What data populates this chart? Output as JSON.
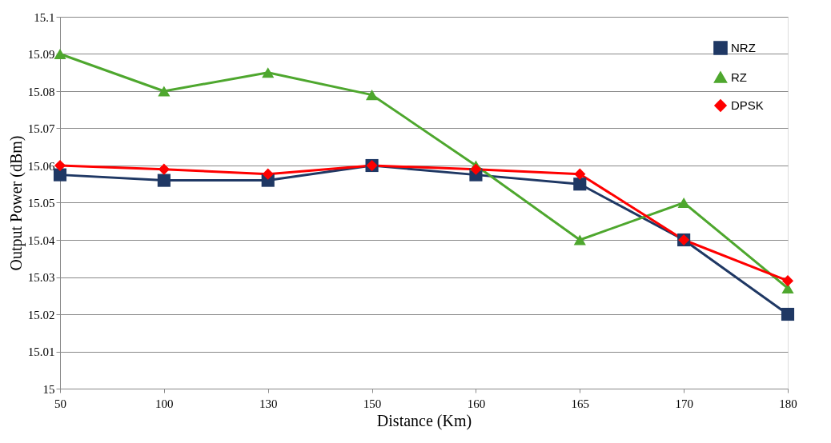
{
  "chart_data": {
    "type": "line",
    "xlabel": "Distance (Km)",
    "ylabel": "Output Power (dBm)",
    "categories": [
      "50",
      "100",
      "130",
      "150",
      "160",
      "165",
      "170",
      "180"
    ],
    "series": [
      {
        "name": "NRZ",
        "color": "#1f3864",
        "marker": "square",
        "values": [
          15.0575,
          15.056,
          15.056,
          15.06,
          15.0575,
          15.055,
          15.04,
          15.02
        ]
      },
      {
        "name": "RZ",
        "color": "#4ea72e",
        "marker": "triangle",
        "values": [
          15.09,
          15.08,
          15.085,
          15.079,
          15.06,
          15.04,
          15.05,
          15.027
        ]
      },
      {
        "name": "DPSK",
        "color": "#ff0000",
        "marker": "diamond",
        "values": [
          15.06,
          15.059,
          15.0577,
          15.06,
          15.059,
          15.0577,
          15.04,
          15.029
        ]
      }
    ],
    "ylim": [
      15,
      15.1
    ],
    "yticks": [
      15,
      15.01,
      15.02,
      15.03,
      15.04,
      15.05,
      15.06,
      15.07,
      15.08,
      15.09,
      15.1
    ],
    "grid": "y",
    "legend": "top right",
    "line_style": "solid"
  }
}
